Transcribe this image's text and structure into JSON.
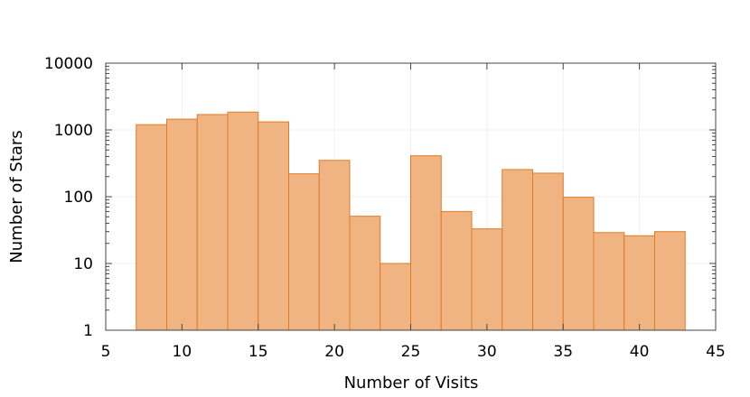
{
  "chart_data": {
    "type": "bar",
    "title": "",
    "xlabel": "Number of Visits",
    "ylabel": "Number of Stars",
    "xlim": [
      5,
      45
    ],
    "ylim": [
      1,
      10000
    ],
    "y_scale": "log",
    "grid": true,
    "bar_color": "#f0b482",
    "bar_edge_color": "#e07b25",
    "x_ticks": [
      5,
      10,
      15,
      20,
      25,
      30,
      35,
      40,
      45
    ],
    "y_ticks": [
      1,
      10,
      100,
      1000,
      10000
    ],
    "x_tick_labels": [
      "5",
      "10",
      "15",
      "20",
      "25",
      "30",
      "35",
      "40",
      "45"
    ],
    "y_tick_labels": [
      "1",
      "10",
      "100",
      "1000",
      "10000"
    ],
    "bins": [
      {
        "x0": 7,
        "x1": 9,
        "value": 1200
      },
      {
        "x0": 9,
        "x1": 11,
        "value": 1450
      },
      {
        "x0": 11,
        "x1": 13,
        "value": 1700
      },
      {
        "x0": 13,
        "x1": 15,
        "value": 1850
      },
      {
        "x0": 15,
        "x1": 17,
        "value": 1320
      },
      {
        "x0": 17,
        "x1": 19,
        "value": 220
      },
      {
        "x0": 19,
        "x1": 21,
        "value": 350
      },
      {
        "x0": 21,
        "x1": 23,
        "value": 51
      },
      {
        "x0": 23,
        "x1": 25,
        "value": 10
      },
      {
        "x0": 25,
        "x1": 27,
        "value": 410
      },
      {
        "x0": 27,
        "x1": 29,
        "value": 60
      },
      {
        "x0": 29,
        "x1": 31,
        "value": 33
      },
      {
        "x0": 31,
        "x1": 33,
        "value": 255
      },
      {
        "x0": 33,
        "x1": 35,
        "value": 225
      },
      {
        "x0": 35,
        "x1": 37,
        "value": 98
      },
      {
        "x0": 37,
        "x1": 39,
        "value": 29
      },
      {
        "x0": 39,
        "x1": 41,
        "value": 26
      },
      {
        "x0": 41,
        "x1": 43,
        "value": 30
      }
    ]
  }
}
